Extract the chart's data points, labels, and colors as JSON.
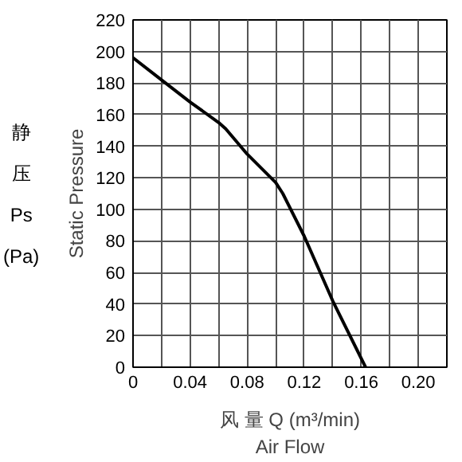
{
  "chart_data": {
    "type": "line",
    "xlabel": "风 量 Q (m³/min)",
    "ylabel": "Static Pressure",
    "annotations": [
      "Air Flow",
      "静",
      "压",
      "Ps",
      "(Pa)"
    ],
    "x": [
      0,
      0.02,
      0.04,
      0.06,
      0.065,
      0.08,
      0.1,
      0.105,
      0.12,
      0.14,
      0.163
    ],
    "series": [
      {
        "color": "#000000",
        "values": [
          196,
          182,
          168,
          155,
          151,
          135,
          117,
          110,
          83,
          42,
          0
        ]
      }
    ],
    "xlim": [
      0,
      0.22
    ],
    "ylim": [
      0,
      220
    ],
    "xticks": [
      0,
      {
        "value": 0.02,
        "label": null
      },
      0.04,
      {
        "value": 0.06,
        "label": null
      },
      0.08,
      {
        "value": 0.1,
        "label": null
      },
      0.12,
      {
        "value": 0.14,
        "label": null
      },
      0.16,
      {
        "value": 0.18,
        "label": null
      },
      {
        "value": 0.2,
        "label": "0.20"
      },
      {
        "value": 0.22,
        "label": null
      }
    ],
    "yticks": [
      0,
      20,
      40,
      60,
      80,
      100,
      120,
      140,
      160,
      180,
      200,
      220
    ],
    "grid": true,
    "marker": "none",
    "line_style": "solid"
  }
}
